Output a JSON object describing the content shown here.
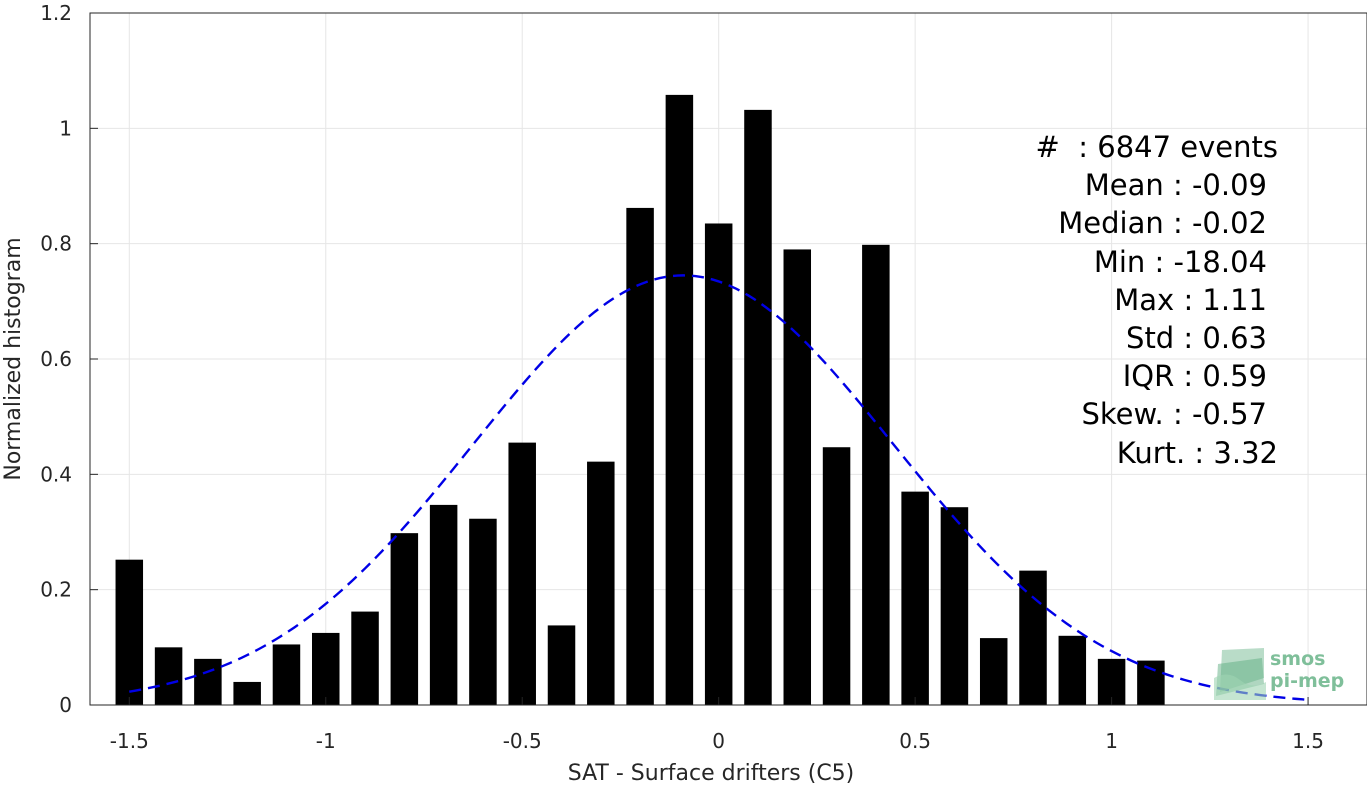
{
  "chart_data": {
    "type": "bar",
    "xlabel": "SAT - Surface drifters (C5)",
    "ylabel": "Normalized histogram",
    "xlim": [
      -1.6,
      1.65
    ],
    "ylim": [
      0,
      1.2
    ],
    "xticks": [
      "-1.5",
      "-1",
      "-0.5",
      "0",
      "0.5",
      "1",
      "1.5"
    ],
    "xtick_values": [
      -1.5,
      -1,
      -0.5,
      0,
      0.5,
      1,
      1.5
    ],
    "yticks": [
      "0",
      "0.2",
      "0.4",
      "0.6",
      "0.8",
      "1",
      "1.2"
    ],
    "ytick_values": [
      0,
      0.2,
      0.4,
      0.6,
      0.8,
      1.0,
      1.2
    ],
    "grid": true,
    "bar_color": "#000000",
    "bar_width": 0.07,
    "x": [
      -1.5,
      -1.4,
      -1.3,
      -1.2,
      -1.1,
      -1.0,
      -0.9,
      -0.8,
      -0.7,
      -0.6,
      -0.5,
      -0.4,
      -0.3,
      -0.2,
      -0.1,
      0.0,
      0.1,
      0.2,
      0.3,
      0.4,
      0.5,
      0.6,
      0.7,
      0.8,
      0.9,
      1.0,
      1.1
    ],
    "values": [
      0.252,
      0.1,
      0.08,
      0.04,
      0.105,
      0.125,
      0.162,
      0.298,
      0.347,
      0.323,
      0.455,
      0.138,
      0.422,
      0.862,
      1.058,
      0.835,
      1.032,
      0.79,
      0.447,
      0.798,
      0.37,
      0.343,
      0.116,
      0.233,
      0.12,
      0.08,
      0.077
    ],
    "fit": {
      "name": "normal fit",
      "color": "#0000e6",
      "style": "dashed",
      "mean": -0.09,
      "std": 0.535,
      "peak": 0.745,
      "x_range": [
        -1.5,
        1.5
      ]
    }
  },
  "stats": [
    "#  : 6847 events",
    "Mean : -0.09",
    "Median : -0.02",
    "Min : -18.04",
    "Max : 1.11",
    "Std : 0.63",
    "IQR : 0.59",
    "Skew. : -0.57",
    "Kurt. : 3.32"
  ],
  "logo": {
    "line1": "smos",
    "line2": "pi-mep",
    "color": "#7fbf9a"
  }
}
